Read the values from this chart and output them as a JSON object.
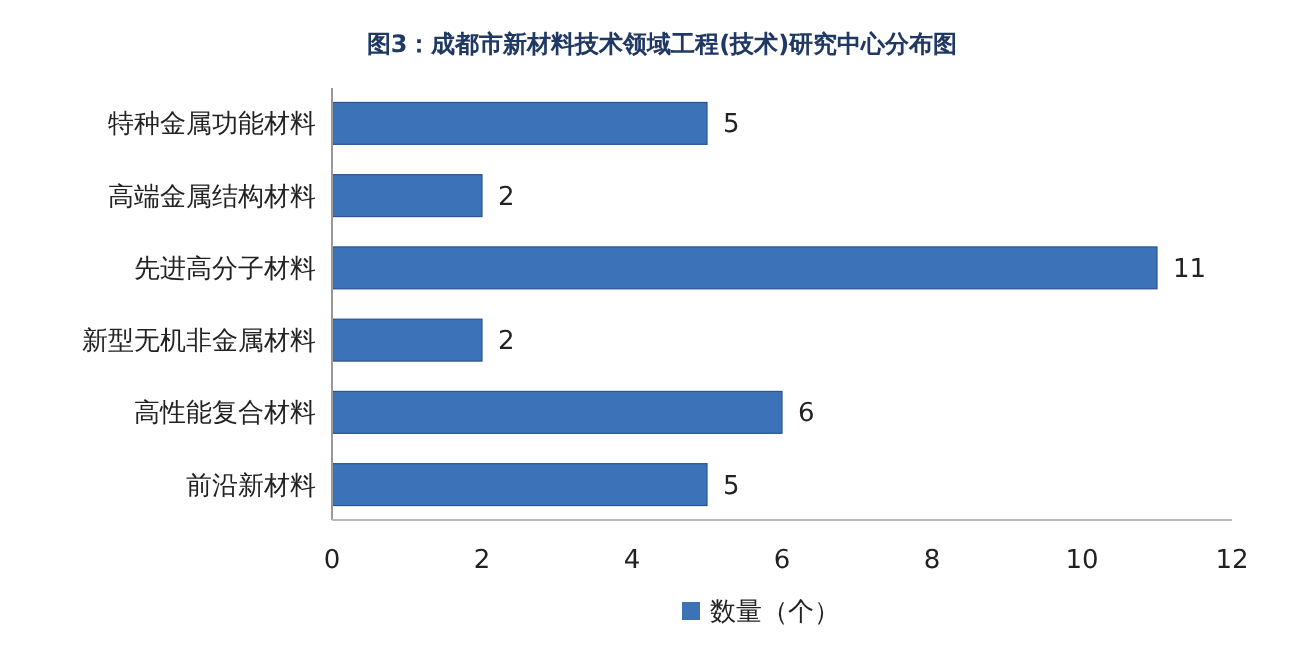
{
  "chart_data": {
    "type": "bar",
    "orientation": "horizontal",
    "title": "图3：成都市新材料技术领域工程(技术)研究中心分布图",
    "categories": [
      "特种金属功能材料",
      "高端金属结构材料",
      "先进高分子材料",
      "新型无机非金属材料",
      "高性能复合材料",
      "前沿新材料"
    ],
    "series": [
      {
        "name": "数量（个）",
        "color": "#3b72b8",
        "values": [
          5,
          2,
          11,
          2,
          6,
          5
        ]
      }
    ],
    "xlim": [
      0,
      12
    ],
    "xticks": [
      0,
      2,
      4,
      6,
      8,
      10,
      12
    ],
    "data_labels": true,
    "legend": "bottom",
    "grid": false
  }
}
